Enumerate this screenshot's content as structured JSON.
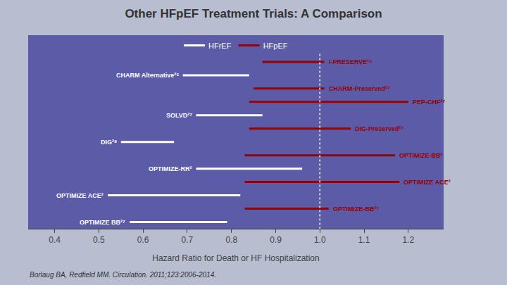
{
  "chart_data": {
    "type": "range",
    "title": "Other HFpEF Treatment Trials: A Comparison",
    "xlabel": "Hazard Ratio for Death or HF Hospitalization",
    "annotations": [
      "Borlaug BA, Redfield MM. Circulation. 2011;123:2006-2014."
    ],
    "categories": [
      "I-PRESERVE¹⁶",
      "CHARM Alternative²⁶",
      "CHARM-Preserved²⁷",
      "PEP-CHF²⁷",
      "SOLVD²⁷",
      "DIG-Preserved²⁷",
      "DIG²⁸",
      "OPTIMIZE-BB²",
      "OPTIMIZE-RR²",
      "OPTIMIZE ACE²",
      "OPTIMIZE ACE²",
      "OPTIMIZE-BB²⁷",
      "OPTIMIZE BB²⁷"
    ],
    "series": [
      {
        "name": "HFrEF",
        "color": "#FFFFFF",
        "low": [
          null,
          0.69,
          null,
          null,
          0.72,
          null,
          0.55,
          null,
          0.72,
          null,
          0.52,
          null,
          0.57
        ],
        "high": [
          null,
          0.84,
          null,
          null,
          0.87,
          null,
          0.67,
          null,
          0.96,
          null,
          0.82,
          null,
          0.79
        ]
      },
      {
        "name": "HFpEF",
        "color": "#990000",
        "low": [
          0.87,
          null,
          0.85,
          0.84,
          null,
          0.84,
          null,
          0.83,
          null,
          0.83,
          null,
          0.83,
          null
        ],
        "high": [
          1.01,
          null,
          1.01,
          1.2,
          null,
          1.07,
          null,
          1.17,
          null,
          1.18,
          null,
          1.02,
          null
        ]
      }
    ],
    "vline": 1.0,
    "xlim": [
      0.34,
      1.28
    ],
    "xticks": [
      0.4,
      0.5,
      0.6,
      0.7,
      0.8,
      0.9,
      {
        "value": 1.0,
        "label": "1.0"
      },
      1.1,
      1.2
    ],
    "grid": false,
    "legend": "upper center",
    "tick_labels": "x"
  }
}
